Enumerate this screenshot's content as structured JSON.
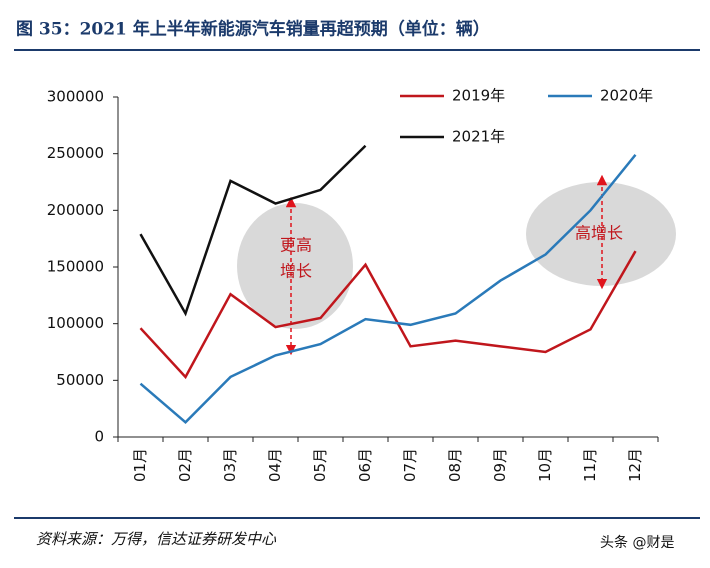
{
  "chart_data": {
    "type": "line",
    "title": "图 35：2021 年上半年新能源汽车销量再超预期（单位：辆）",
    "categories": [
      "01月",
      "02月",
      "03月",
      "04月",
      "05月",
      "06月",
      "07月",
      "08月",
      "09月",
      "10月",
      "11月",
      "12月"
    ],
    "series": [
      {
        "name": "2019年",
        "color": "#c0161c",
        "values": [
          96000,
          53000,
          126000,
          97000,
          105000,
          152000,
          80000,
          85000,
          80000,
          75000,
          95000,
          164000
        ]
      },
      {
        "name": "2020年",
        "color": "#2a7ab9",
        "values": [
          47000,
          13000,
          53000,
          72000,
          82000,
          104000,
          99000,
          109000,
          138000,
          161000,
          200000,
          249000
        ]
      },
      {
        "name": "2021年",
        "color": "#111111",
        "values": [
          179000,
          109000,
          226000,
          206000,
          218000,
          257000,
          null,
          null,
          null,
          null,
          null,
          null
        ]
      }
    ],
    "ylim": [
      0,
      300000
    ],
    "yticks": [
      0,
      50000,
      100000,
      150000,
      200000,
      250000,
      300000
    ],
    "grid": false,
    "annotations": [
      "更高",
      "增长",
      "高增长"
    ],
    "source": "资料来源：万得，信达证券研发中心",
    "watermark": "头条 @财是"
  }
}
